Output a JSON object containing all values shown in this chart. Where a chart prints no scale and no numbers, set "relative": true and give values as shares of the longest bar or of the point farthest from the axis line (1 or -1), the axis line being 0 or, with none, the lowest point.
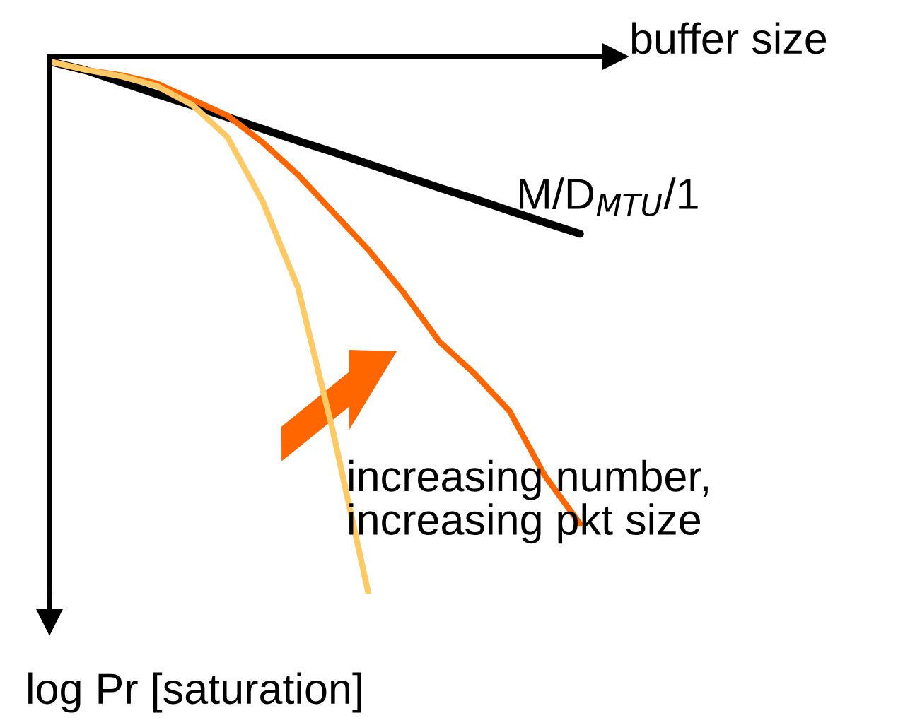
{
  "chart_data": {
    "type": "line",
    "relative": true,
    "xlabel": "buffer size",
    "categories": [
      null,
      null,
      null,
      null,
      null,
      null,
      null,
      null,
      null,
      null,
      null,
      null,
      null,
      null,
      null,
      null
    ],
    "tick_labels": false,
    "marker": "none",
    "line_style": "solid",
    "series": [
      {
        "color": "#000000",
        "values": [
          -0.01,
          -0.026,
          -0.048,
          -0.07,
          -0.091,
          -0.113,
          -0.135,
          -0.157,
          -0.178,
          -0.2,
          -0.222,
          -0.244,
          -0.265,
          -0.287,
          -0.309,
          -0.33
        ]
      },
      {
        "color": "#ff6600",
        "values": [
          -0.01,
          -0.025,
          -0.035,
          -0.05,
          -0.08,
          -0.11,
          -0.16,
          -0.22,
          -0.29,
          -0.36,
          -0.44,
          -0.53,
          -0.59,
          -0.66,
          -0.78,
          -0.87
        ]
      },
      {
        "color": "#ffc966",
        "values": [
          -0.01,
          -0.025,
          -0.037,
          -0.055,
          -0.09,
          -0.15,
          -0.27,
          -0.43,
          -0.7,
          -1,
          null,
          null,
          null,
          null,
          null,
          null
        ]
      }
    ],
    "annotations": [
      "M/D$_{MTU}$/1",
      "increasing number,\nincreasing pkt size",
      "log Pr [saturation]"
    ]
  }
}
